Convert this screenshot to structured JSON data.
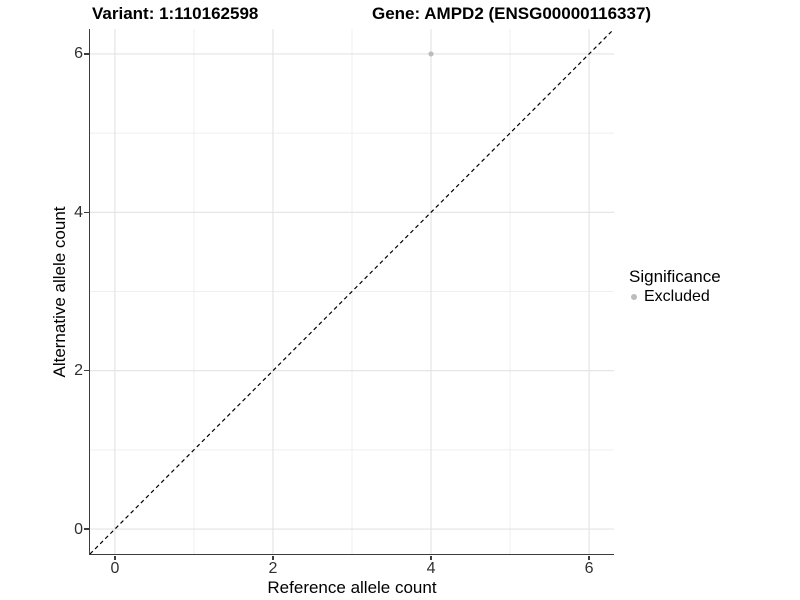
{
  "chart_data": {
    "type": "scatter",
    "title_parts": {
      "variant": "Variant: 1:110162598",
      "gene": "Gene: AMPD2 (ENSG00000116337)"
    },
    "xlabel": "Reference allele count",
    "ylabel": "Alternative allele count",
    "xlim": [
      -0.315,
      6.315
    ],
    "ylim": [
      -0.315,
      6.315
    ],
    "x_ticks": [
      0,
      2,
      4,
      6
    ],
    "y_ticks": [
      0,
      2,
      4,
      6
    ],
    "x_minor_gridlines": [
      1,
      3,
      5
    ],
    "y_minor_gridlines": [
      1,
      3,
      5
    ],
    "grid": "on",
    "reference_line": {
      "kind": "identity y=x",
      "slope": 1,
      "intercept": 0,
      "style": "dashed",
      "color": "#000000"
    },
    "series": [
      {
        "name": "Excluded",
        "marker": "circle",
        "marker_color": "#bcbcbc",
        "points": [
          {
            "x": 4,
            "y": 6
          }
        ]
      }
    ],
    "legend": {
      "title": "Significance",
      "position": "right",
      "entries": [
        {
          "label": "Excluded",
          "color": "#bcbcbc",
          "marker": "circle"
        }
      ]
    },
    "colors": {
      "background": "#ffffff",
      "major_gridline": "#e3e3e3",
      "minor_gridline": "#efefef",
      "axis_line": "#3c3c3c",
      "tick_label": "#303030",
      "point": "#bcbcbc"
    }
  }
}
